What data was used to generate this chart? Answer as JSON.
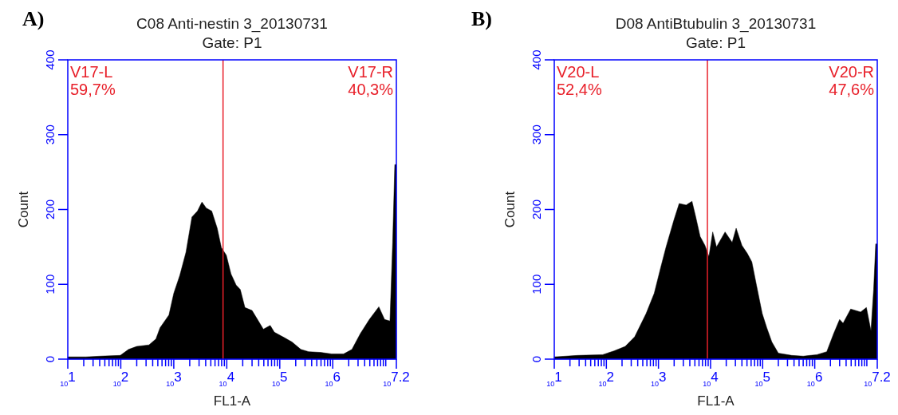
{
  "chart_data": [
    {
      "type": "area",
      "title": "C08 Anti-nestin 3_20130731",
      "subtitle": "Gate: P1",
      "xlabel": "FL1-A",
      "ylabel": "Count",
      "log": "x",
      "annotations": [
        "A)",
        "V17-L",
        "59,7%",
        "V17-R",
        "40,3%"
      ],
      "xlim": [
        10,
        15848932
      ],
      "ylim": [
        0,
        400
      ],
      "yticks": [
        0,
        100,
        200,
        300,
        400
      ],
      "xticks": [
        {
          "value": 10,
          "label": "10$^{1}$"
        },
        {
          "value": 20,
          "label": null
        },
        {
          "value": 30,
          "label": null
        },
        {
          "value": 40,
          "label": null
        },
        {
          "value": 50,
          "label": null
        },
        {
          "value": 60,
          "label": null
        },
        {
          "value": 70,
          "label": null
        },
        {
          "value": 80,
          "label": null
        },
        {
          "value": 90,
          "label": null
        },
        {
          "value": 100,
          "label": "10$^{2}$"
        },
        {
          "value": 200,
          "label": null
        },
        {
          "value": 300,
          "label": null
        },
        {
          "value": 400,
          "label": null
        },
        {
          "value": 500,
          "label": null
        },
        {
          "value": 600,
          "label": null
        },
        {
          "value": 700,
          "label": null
        },
        {
          "value": 800,
          "label": null
        },
        {
          "value": 900,
          "label": null
        },
        {
          "value": 1000,
          "label": "10$^{3}$"
        },
        {
          "value": 2000,
          "label": null
        },
        {
          "value": 3000,
          "label": null
        },
        {
          "value": 4000,
          "label": null
        },
        {
          "value": 5000,
          "label": null
        },
        {
          "value": 6000,
          "label": null
        },
        {
          "value": 7000,
          "label": null
        },
        {
          "value": 8000,
          "label": null
        },
        {
          "value": 9000,
          "label": null
        },
        {
          "value": 10000,
          "label": "10$^{4}$"
        },
        {
          "value": 20000,
          "label": null
        },
        {
          "value": 30000,
          "label": null
        },
        {
          "value": 40000,
          "label": null
        },
        {
          "value": 50000,
          "label": null
        },
        {
          "value": 60000,
          "label": null
        },
        {
          "value": 70000,
          "label": null
        },
        {
          "value": 80000,
          "label": null
        },
        {
          "value": 90000,
          "label": null
        },
        {
          "value": 100000,
          "label": "10$^{5}$"
        },
        {
          "value": 200000,
          "label": null
        },
        {
          "value": 300000,
          "label": null
        },
        {
          "value": 400000,
          "label": null
        },
        {
          "value": 500000,
          "label": null
        },
        {
          "value": 600000,
          "label": null
        },
        {
          "value": 700000,
          "label": null
        },
        {
          "value": 800000,
          "label": null
        },
        {
          "value": 900000,
          "label": null
        },
        {
          "value": 1000000,
          "label": "10$^{6}$"
        },
        {
          "value": 2000000,
          "label": null
        },
        {
          "value": 3000000,
          "label": null
        },
        {
          "value": 4000000,
          "label": null
        },
        {
          "value": 5000000,
          "label": null
        },
        {
          "value": 6000000,
          "label": null
        },
        {
          "value": 7000000,
          "label": null
        },
        {
          "value": 8000000,
          "label": null
        },
        {
          "value": 9000000,
          "label": null
        },
        {
          "value": 10000000,
          "label": null
        },
        {
          "value": 15848932,
          "label": "10$^{7.2}$"
        }
      ],
      "ref_lines": [
        {
          "axis": "x",
          "value": 8500,
          "color": "#e8202a"
        }
      ],
      "series": [
        {
          "color": "#000000",
          "x": [
            10,
            22,
            41,
            98,
            140,
            200,
            340,
            460,
            550,
            810,
            1000,
            1300,
            1700,
            2200,
            2800,
            3400,
            4100,
            5200,
            6600,
            7900,
            9800,
            12000,
            15000,
            18000,
            22000,
            30000,
            38000,
            49000,
            66000,
            79000,
            120000,
            170000,
            250000,
            350000,
            590000,
            950000,
            1600000,
            2300000,
            3300000,
            4900000,
            7400000,
            9500000,
            12000000,
            13500000,
            14800000,
            15800000
          ],
          "values": [
            3,
            3,
            4,
            5,
            13,
            17,
            19,
            27,
            42,
            59,
            88,
            112,
            143,
            190,
            198,
            210,
            202,
            198,
            175,
            149,
            139,
            114,
            99,
            93,
            69,
            65,
            53,
            40,
            45,
            36,
            29,
            23,
            13,
            10,
            9,
            7,
            7,
            13,
            34,
            53,
            70,
            53,
            51,
            156,
            260,
            260
          ]
        }
      ]
    },
    {
      "type": "area",
      "title": "D08 AntiBtubulin 3_20130731",
      "subtitle": "Gate: P1",
      "xlabel": "FL1-A",
      "ylabel": "Count",
      "log": "x",
      "annotations": [
        "B)",
        "V20-L",
        "52,4%",
        "V20-R",
        "47,6%"
      ],
      "xlim": [
        10,
        15848932
      ],
      "ylim": [
        0,
        400
      ],
      "yticks": [
        0,
        100,
        200,
        300,
        400
      ],
      "xticks": [
        {
          "value": 10,
          "label": "10$^{1}$"
        },
        {
          "value": 20,
          "label": null
        },
        {
          "value": 30,
          "label": null
        },
        {
          "value": 40,
          "label": null
        },
        {
          "value": 50,
          "label": null
        },
        {
          "value": 60,
          "label": null
        },
        {
          "value": 70,
          "label": null
        },
        {
          "value": 80,
          "label": null
        },
        {
          "value": 90,
          "label": null
        },
        {
          "value": 100,
          "label": "10$^{2}$"
        },
        {
          "value": 200,
          "label": null
        },
        {
          "value": 300,
          "label": null
        },
        {
          "value": 400,
          "label": null
        },
        {
          "value": 500,
          "label": null
        },
        {
          "value": 600,
          "label": null
        },
        {
          "value": 700,
          "label": null
        },
        {
          "value": 800,
          "label": null
        },
        {
          "value": 900,
          "label": null
        },
        {
          "value": 1000,
          "label": "10$^{3}$"
        },
        {
          "value": 2000,
          "label": null
        },
        {
          "value": 3000,
          "label": null
        },
        {
          "value": 4000,
          "label": null
        },
        {
          "value": 5000,
          "label": null
        },
        {
          "value": 6000,
          "label": null
        },
        {
          "value": 7000,
          "label": null
        },
        {
          "value": 8000,
          "label": null
        },
        {
          "value": 9000,
          "label": null
        },
        {
          "value": 10000,
          "label": "10$^{4}$"
        },
        {
          "value": 20000,
          "label": null
        },
        {
          "value": 30000,
          "label": null
        },
        {
          "value": 40000,
          "label": null
        },
        {
          "value": 50000,
          "label": null
        },
        {
          "value": 60000,
          "label": null
        },
        {
          "value": 70000,
          "label": null
        },
        {
          "value": 80000,
          "label": null
        },
        {
          "value": 90000,
          "label": null
        },
        {
          "value": 100000,
          "label": "10$^{5}$"
        },
        {
          "value": 200000,
          "label": null
        },
        {
          "value": 300000,
          "label": null
        },
        {
          "value": 400000,
          "label": null
        },
        {
          "value": 500000,
          "label": null
        },
        {
          "value": 600000,
          "label": null
        },
        {
          "value": 700000,
          "label": null
        },
        {
          "value": 800000,
          "label": null
        },
        {
          "value": 900000,
          "label": null
        },
        {
          "value": 1000000,
          "label": "10$^{6}$"
        },
        {
          "value": 2000000,
          "label": null
        },
        {
          "value": 3000000,
          "label": null
        },
        {
          "value": 4000000,
          "label": null
        },
        {
          "value": 5000000,
          "label": null
        },
        {
          "value": 6000000,
          "label": null
        },
        {
          "value": 7000000,
          "label": null
        },
        {
          "value": 8000000,
          "label": null
        },
        {
          "value": 9000000,
          "label": null
        },
        {
          "value": 10000000,
          "label": null
        },
        {
          "value": 15848932,
          "label": "10$^{7.2}$"
        }
      ],
      "ref_lines": [
        {
          "axis": "x",
          "value": 8700,
          "color": "#e8202a"
        }
      ],
      "series": [
        {
          "color": "#000000",
          "x": [
            10,
            28,
            85,
            140,
            230,
            350,
            580,
            830,
            1100,
            1400,
            2000,
            2500,
            3400,
            4400,
            5200,
            6300,
            7800,
            9300,
            11000,
            13000,
            19000,
            26000,
            31000,
            40000,
            51000,
            62000,
            76000,
            98000,
            120000,
            150000,
            200000,
            360000,
            600000,
            1100000,
            1700000,
            2300000,
            3000000,
            3500000,
            4900000,
            7600000,
            9800000,
            12000000,
            13500000,
            14800000,
            15800000
          ],
          "values": [
            3,
            5,
            6,
            11,
            17,
            30,
            61,
            88,
            122,
            150,
            187,
            208,
            206,
            211,
            190,
            164,
            152,
            137,
            170,
            150,
            170,
            156,
            175,
            152,
            141,
            130,
            99,
            61,
            42,
            23,
            8,
            5,
            4,
            6,
            10,
            34,
            53,
            48,
            67,
            63,
            69,
            38,
            93,
            154,
            154
          ]
        }
      ]
    }
  ]
}
